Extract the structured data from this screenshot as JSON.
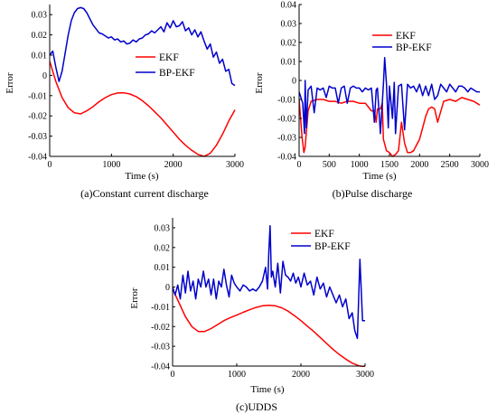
{
  "figure": {
    "charts": [
      {
        "caption": "(a)Constant current discharge",
        "xlabel": "Time (s)",
        "ylabel": "Error",
        "xlim": [
          0,
          3000
        ],
        "ylim": [
          -0.04,
          0.035
        ],
        "xticks": [
          0,
          1000,
          2000,
          3000
        ],
        "xtick_labels": [
          "0",
          "1000",
          "2000",
          "3000"
        ],
        "yticks": [
          -0.04,
          -0.03,
          -0.02,
          -0.01,
          0,
          0.01,
          0.02,
          0.03
        ],
        "ytick_labels": [
          "-0.04",
          "-0.03",
          "-0.02",
          "-0.01",
          "0",
          "0.01",
          "0.02",
          "0.03"
        ],
        "legend": {
          "position": "right",
          "entries": [
            "EKF",
            "BP-EKF"
          ]
        },
        "grid": false
      },
      {
        "caption": "(b)Pulse discharge",
        "xlabel": "Time (s)",
        "ylabel": "Error",
        "xlim": [
          0,
          3000
        ],
        "ylim": [
          -0.04,
          0.04
        ],
        "xticks": [
          0,
          500,
          1000,
          1500,
          2000,
          2500,
          3000
        ],
        "xtick_labels": [
          "0",
          "500",
          "1000",
          "1500",
          "2000",
          "2500",
          "3000"
        ],
        "yticks": [
          -0.04,
          -0.03,
          -0.02,
          -0.01,
          0,
          0.01,
          0.02,
          0.03,
          0.04
        ],
        "ytick_labels": [
          "-0.04",
          "-0.03",
          "-0.02",
          "-0.01",
          "0",
          "0.01",
          "0.02",
          "0.03",
          "0.04"
        ],
        "legend": {
          "position": "top-right",
          "entries": [
            "EKF",
            "BP-EKF"
          ]
        },
        "grid": false
      },
      {
        "caption": "(c)UDDS",
        "xlabel": "Time (s)",
        "ylabel": "Error",
        "xlim": [
          0,
          3000
        ],
        "ylim": [
          -0.04,
          0.035
        ],
        "xticks": [
          0,
          1000,
          2000,
          3000
        ],
        "xtick_labels": [
          "0",
          "1000",
          "2000",
          "3000"
        ],
        "yticks": [
          -0.04,
          -0.03,
          -0.02,
          -0.01,
          0,
          0.01,
          0.02,
          0.03
        ],
        "ytick_labels": [
          "-0.04",
          "-0.03",
          "-0.02",
          "-0.01",
          "0",
          "0.01",
          "0.02",
          "0.03"
        ],
        "legend": {
          "position": "top-right",
          "entries": [
            "EKF",
            "BP-EKF"
          ]
        },
        "grid": false
      }
    ]
  },
  "colors": {
    "ekf": "#ff0000",
    "bp_ekf": "#0000cc",
    "axis": "#000000"
  },
  "chart_data": [
    {
      "type": "line",
      "xlabel": "Time (s)",
      "ylabel": "Error",
      "xlim": [
        0,
        3000
      ],
      "ylim": [
        -0.04,
        0.035
      ],
      "series": [
        {
          "name": "EKF",
          "x": [
            0,
            100,
            200,
            300,
            400,
            500,
            600,
            700,
            800,
            900,
            1000,
            1100,
            1200,
            1300,
            1400,
            1500,
            1600,
            1700,
            1800,
            1900,
            2000,
            2100,
            2200,
            2300,
            2400,
            2500,
            2600,
            2700,
            2800,
            2900,
            3000
          ],
          "y": [
            0.007,
            -0.003,
            -0.011,
            -0.016,
            -0.0185,
            -0.019,
            -0.0175,
            -0.0155,
            -0.013,
            -0.011,
            -0.0095,
            -0.0087,
            -0.0086,
            -0.0092,
            -0.0105,
            -0.0125,
            -0.015,
            -0.018,
            -0.021,
            -0.0245,
            -0.028,
            -0.0315,
            -0.0345,
            -0.037,
            -0.039,
            -0.04,
            -0.0385,
            -0.0345,
            -0.029,
            -0.0225,
            -0.017
          ]
        },
        {
          "name": "BP-EKF",
          "x": [
            0,
            50,
            100,
            150,
            200,
            250,
            300,
            350,
            400,
            450,
            500,
            550,
            600,
            650,
            700,
            750,
            800,
            850,
            900,
            950,
            1000,
            1050,
            1100,
            1150,
            1200,
            1250,
            1300,
            1350,
            1400,
            1450,
            1500,
            1550,
            1600,
            1650,
            1700,
            1750,
            1800,
            1850,
            1900,
            1950,
            2000,
            2050,
            2100,
            2150,
            2200,
            2250,
            2300,
            2350,
            2400,
            2450,
            2500,
            2550,
            2600,
            2650,
            2700,
            2750,
            2800,
            2850,
            2900,
            2950,
            3000
          ],
          "y": [
            0.01,
            0.012,
            0.004,
            -0.003,
            0.002,
            0.011,
            0.02,
            0.027,
            0.031,
            0.033,
            0.0335,
            0.033,
            0.031,
            0.028,
            0.025,
            0.023,
            0.021,
            0.0205,
            0.0195,
            0.0185,
            0.019,
            0.0175,
            0.018,
            0.0165,
            0.017,
            0.0155,
            0.016,
            0.0175,
            0.0165,
            0.018,
            0.0185,
            0.02,
            0.0205,
            0.022,
            0.021,
            0.0225,
            0.024,
            0.0215,
            0.026,
            0.0235,
            0.027,
            0.024,
            0.0245,
            0.0265,
            0.022,
            0.0235,
            0.02,
            0.0225,
            0.019,
            0.0215,
            0.017,
            0.013,
            0.0155,
            0.009,
            0.0115,
            0.006,
            0.008,
            0.002,
            0.003,
            -0.004,
            -0.005
          ]
        }
      ]
    },
    {
      "type": "line",
      "xlabel": "Time (s)",
      "ylabel": "Error",
      "xlim": [
        0,
        3000
      ],
      "ylim": [
        -0.04,
        0.04
      ],
      "series": [
        {
          "name": "EKF",
          "x": [
            0,
            50,
            80,
            100,
            150,
            200,
            300,
            400,
            500,
            600,
            700,
            800,
            900,
            1000,
            1100,
            1150,
            1200,
            1250,
            1280,
            1300,
            1350,
            1380,
            1400,
            1450,
            1500,
            1550,
            1600,
            1650,
            1700,
            1750,
            1800,
            1850,
            1900,
            1950,
            2000,
            2050,
            2100,
            2150,
            2200,
            2250,
            2300,
            2400,
            2500,
            2600,
            2700,
            2800,
            2900,
            2950,
            3000
          ],
          "y": [
            -0.01,
            -0.03,
            -0.038,
            -0.035,
            -0.016,
            -0.011,
            -0.01,
            -0.01,
            -0.011,
            -0.011,
            -0.012,
            -0.011,
            -0.011,
            -0.012,
            -0.012,
            -0.014,
            -0.016,
            -0.016,
            -0.022,
            -0.015,
            -0.015,
            -0.012,
            -0.031,
            -0.037,
            -0.038,
            -0.04,
            -0.039,
            -0.037,
            -0.022,
            -0.033,
            -0.038,
            -0.038,
            -0.037,
            -0.034,
            -0.031,
            -0.025,
            -0.019,
            -0.015,
            -0.014,
            -0.015,
            -0.022,
            -0.011,
            -0.01,
            -0.011,
            -0.009,
            -0.01,
            -0.011,
            -0.012,
            -0.013
          ]
        },
        {
          "name": "BP-EKF",
          "x": [
            0,
            30,
            60,
            90,
            100,
            120,
            150,
            200,
            250,
            300,
            350,
            400,
            450,
            500,
            550,
            600,
            650,
            700,
            750,
            800,
            850,
            900,
            950,
            1000,
            1050,
            1100,
            1150,
            1200,
            1250,
            1280,
            1300,
            1350,
            1400,
            1420,
            1450,
            1480,
            1500,
            1550,
            1580,
            1600,
            1650,
            1700,
            1750,
            1800,
            1850,
            1900,
            1950,
            2000,
            2050,
            2100,
            2150,
            2200,
            2250,
            2300,
            2350,
            2400,
            2450,
            2500,
            2550,
            2600,
            2650,
            2700,
            2750,
            2800,
            2850,
            2900,
            2950,
            3000
          ],
          "y": [
            -0.006,
            -0.009,
            -0.012,
            -0.028,
            0.0,
            -0.025,
            -0.005,
            -0.003,
            -0.017,
            -0.004,
            -0.005,
            -0.004,
            -0.009,
            -0.003,
            -0.004,
            -0.004,
            -0.012,
            -0.004,
            -0.003,
            -0.012,
            -0.004,
            -0.003,
            -0.004,
            -0.004,
            -0.006,
            -0.004,
            -0.005,
            -0.004,
            -0.022,
            -0.005,
            -0.004,
            -0.028,
            -0.002,
            0.012,
            -0.002,
            -0.025,
            -0.003,
            -0.02,
            -0.001,
            -0.028,
            -0.003,
            -0.002,
            -0.026,
            -0.002,
            -0.004,
            -0.003,
            -0.006,
            -0.002,
            -0.008,
            -0.003,
            -0.008,
            -0.002,
            -0.01,
            -0.008,
            -0.002,
            -0.004,
            -0.006,
            -0.002,
            -0.004,
            -0.006,
            -0.003,
            -0.003,
            -0.004,
            -0.006,
            -0.004,
            -0.005,
            -0.006,
            -0.006
          ]
        }
      ]
    },
    {
      "type": "line",
      "xlabel": "Time (s)",
      "ylabel": "Error",
      "xlim": [
        0,
        3000
      ],
      "ylim": [
        -0.04,
        0.035
      ],
      "series": [
        {
          "name": "EKF",
          "x": [
            0,
            100,
            200,
            300,
            400,
            500,
            600,
            700,
            800,
            900,
            1000,
            1100,
            1200,
            1300,
            1400,
            1500,
            1600,
            1700,
            1800,
            1900,
            2000,
            2100,
            2200,
            2300,
            2400,
            2500,
            2600,
            2700,
            2800,
            2900,
            3000
          ],
          "y": [
            -0.001,
            -0.008,
            -0.015,
            -0.02,
            -0.0225,
            -0.0225,
            -0.021,
            -0.019,
            -0.017,
            -0.0155,
            -0.0142,
            -0.0128,
            -0.0115,
            -0.0103,
            -0.0095,
            -0.0092,
            -0.0095,
            -0.0105,
            -0.0122,
            -0.0145,
            -0.017,
            -0.0198,
            -0.0225,
            -0.0255,
            -0.0285,
            -0.0315,
            -0.0342,
            -0.0365,
            -0.0385,
            -0.0398,
            -0.0405
          ]
        },
        {
          "name": "BP-EKF",
          "x": [
            0,
            40,
            80,
            120,
            160,
            200,
            240,
            280,
            320,
            360,
            400,
            440,
            480,
            520,
            560,
            600,
            640,
            680,
            720,
            760,
            800,
            840,
            880,
            920,
            960,
            1000,
            1050,
            1100,
            1150,
            1200,
            1250,
            1300,
            1350,
            1400,
            1450,
            1480,
            1500,
            1520,
            1540,
            1560,
            1600,
            1640,
            1680,
            1720,
            1760,
            1800,
            1840,
            1880,
            1920,
            1960,
            2000,
            2050,
            2100,
            2150,
            2200,
            2250,
            2300,
            2350,
            2400,
            2450,
            2500,
            2550,
            2600,
            2650,
            2700,
            2750,
            2800,
            2840,
            2880,
            2920,
            2960,
            3000
          ],
          "y": [
            0.0,
            -0.004,
            0.001,
            -0.006,
            0.006,
            -0.003,
            0.008,
            -0.002,
            0.003,
            -0.006,
            0.004,
            0.0,
            0.008,
            0.0,
            0.004,
            -0.004,
            0.004,
            -0.006,
            0.003,
            0.0,
            0.009,
            0.001,
            -0.005,
            0.006,
            0.002,
            0.0,
            -0.002,
            0.001,
            0.0,
            -0.002,
            -0.001,
            -0.002,
            0.0,
            0.003,
            0.01,
            -0.001,
            0.018,
            0.031,
            0.005,
            0.008,
            0.0,
            0.012,
            -0.003,
            0.013,
            0.006,
            0.005,
            0.003,
            0.007,
            0.002,
            0.005,
            0.0,
            0.007,
            0.001,
            0.003,
            -0.004,
            0.005,
            -0.001,
            0.002,
            -0.005,
            0.0,
            -0.004,
            -0.008,
            -0.004,
            -0.01,
            -0.006,
            -0.016,
            -0.013,
            -0.022,
            -0.026,
            0.014,
            -0.017,
            -0.017
          ]
        }
      ]
    }
  ]
}
